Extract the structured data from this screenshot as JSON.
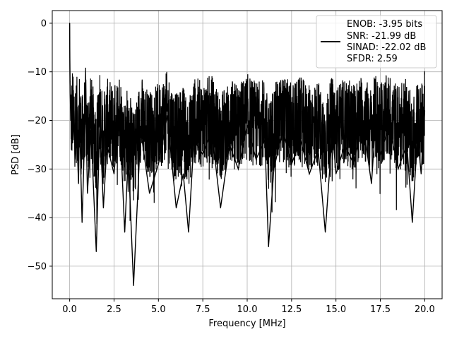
{
  "chart_data": {
    "type": "line",
    "title": "",
    "xlabel": "Frequency [MHz]",
    "ylabel": "PSD [dB]",
    "xlim": [
      -0.98,
      20.98
    ],
    "ylim": [
      -56.7,
      2.6
    ],
    "xticks": [
      0.0,
      2.5,
      5.0,
      7.5,
      10.0,
      12.5,
      15.0,
      17.5,
      20.0
    ],
    "xtick_labels": [
      "0.0",
      "2.5",
      "5.0",
      "7.5",
      "10.0",
      "12.5",
      "15.0",
      "17.5",
      "20.0"
    ],
    "yticks": [
      0,
      -10,
      -20,
      -30,
      -40,
      -50
    ],
    "ytick_labels": [
      "0",
      "−10",
      "−20",
      "−30",
      "−40",
      "−50"
    ],
    "grid": true,
    "line_color": "#000000",
    "legend": {
      "placement": "top-right",
      "entries": [
        "ENOB: -3.95 bits",
        "SNR: -21.99 dB",
        "SINAD: -22.02 dB",
        "SFDR: 2.59"
      ]
    },
    "series": [
      {
        "x": [
          0.0,
          0.01,
          0.02,
          0.04,
          0.06,
          0.08,
          0.1,
          0.13,
          0.16,
          0.2,
          0.25,
          0.3,
          0.4,
          0.5,
          0.55,
          0.7,
          0.9,
          1.0,
          1.2,
          1.5,
          1.7,
          1.9,
          2.1,
          2.5,
          2.8,
          3.1,
          3.3,
          3.6,
          4.0,
          4.5,
          5.0,
          5.5,
          6.0,
          6.4,
          6.7,
          7.0,
          7.5,
          8.0,
          8.5,
          9.0,
          9.5,
          10.0,
          10.5,
          11.0,
          11.2,
          11.5,
          12.0,
          12.5,
          13.0,
          13.5,
          14.0,
          14.4,
          14.8,
          15.0,
          15.5,
          16.0,
          16.5,
          17.0,
          17.2,
          17.5,
          18.0,
          18.5,
          19.0,
          19.3,
          19.6,
          19.8,
          19.9,
          20.0
        ],
        "y": [
          0,
          -7,
          -12,
          -16,
          -20,
          -15,
          -26,
          -21,
          -14,
          -24,
          -18,
          -28,
          -23,
          -33,
          -19,
          -41,
          -16,
          -35,
          -22,
          -47,
          -20,
          -38,
          -25,
          -31,
          -18,
          -43,
          -27,
          -54,
          -22,
          -35,
          -29,
          -19,
          -38,
          -31,
          -43,
          -24,
          -27,
          -22,
          -38,
          -25,
          -30,
          -21,
          -28,
          -24,
          -46,
          -30,
          -22,
          -29,
          -24,
          -31,
          -26,
          -43,
          -22,
          -31,
          -25,
          -29,
          -20,
          -33,
          -22,
          -27,
          -21,
          -30,
          -25,
          -41,
          -23,
          -31,
          -24,
          -18
        ]
      }
    ]
  }
}
